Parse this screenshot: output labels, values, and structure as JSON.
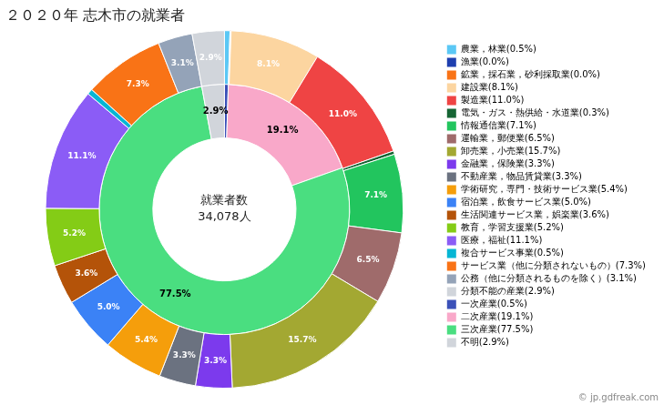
{
  "chart_data": {
    "type": "doughnut",
    "title": "２０２０年 志木市の就業者",
    "annotations": [
      "就業者数",
      "34,078人",
      "© jp.gdfreak.com"
    ],
    "legend": "right",
    "data_labels": true,
    "series": [
      {
        "categories": [
          "農業，林業(0.5%)",
          "漁業(0.0%)",
          "鉱業，採石業，砂利採取業(0.0%)",
          "建設業(8.1%)",
          "製造業(11.0%)",
          "電気・ガス・熱供給・水道業(0.3%)",
          "情報通信業(7.1%)",
          "運輸業，郵便業(6.5%)",
          "卸売業，小売業(15.7%)",
          "金融業，保険業(3.3%)",
          "不動産業，物品賃貸業(3.3%)",
          "学術研究，専門・技術サービス業(5.4%)",
          "宿泊業，飲食サービス業(5.0%)",
          "生活関連サービス業，娯楽業(3.6%)",
          "教育，学習支援業(5.2%)",
          "医療，福祉(11.1%)",
          "複合サービス事業(0.5%)",
          "サービス業（他に分類されないもの）(7.3%)",
          "公務（他に分類されるものを除く）(3.1%)",
          "分類不能の産業(2.9%)"
        ],
        "values": [
          0.5,
          0.05,
          0.05,
          8.1,
          11.0,
          0.3,
          7.1,
          6.5,
          15.7,
          3.3,
          3.3,
          5.4,
          5.0,
          3.6,
          5.2,
          11.1,
          0.5,
          7.3,
          3.1,
          2.9
        ],
        "value_labels": [
          null,
          null,
          null,
          "8.1%",
          "11.0%",
          null,
          "7.1%",
          "6.5%",
          "15.7%",
          "3.3%",
          "3.3%",
          "5.4%",
          "5.0%",
          "3.6%",
          "5.2%",
          "11.1%",
          null,
          "7.3%",
          "3.1%",
          "2.9%"
        ],
        "colors": [
          "#5bc8f5",
          "#1e3faf",
          "#f97316",
          "#fcd5a0",
          "#ef4444",
          "#166534",
          "#22c55e",
          "#9f6b6b",
          "#a3a832",
          "#7c3aed",
          "#6b7280",
          "#f59e0b",
          "#3b82f6",
          "#b45309",
          "#84cc16",
          "#8b5cf6",
          "#06b6d4",
          "#f97316",
          "#94a3b8",
          "#d1d5db"
        ]
      },
      {
        "categories": [
          "一次産業(0.5%)",
          "二次産業(19.1%)",
          "三次産業(77.5%)",
          "不明(2.9%)"
        ],
        "values": [
          0.5,
          19.1,
          77.5,
          2.9
        ],
        "value_labels": [
          null,
          "19.1%",
          "77.5%",
          "2.9%"
        ],
        "colors": [
          "#3b51b8",
          "#f9a8c9",
          "#4ade80",
          "#d1d5db"
        ]
      }
    ]
  }
}
